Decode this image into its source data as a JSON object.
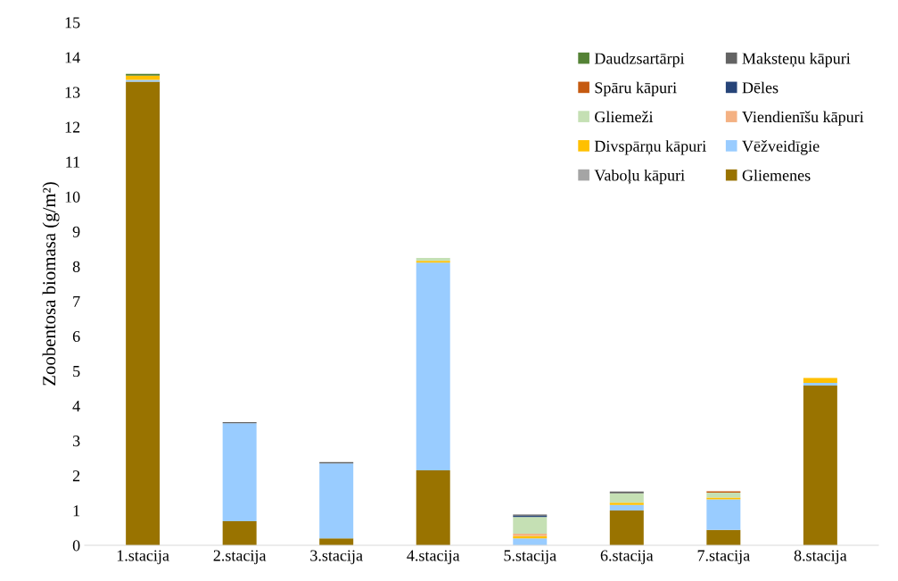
{
  "chart_data": {
    "type": "bar",
    "stacked": true,
    "ylabel": "Zoobentosa biomasa (g/m²)",
    "categories": [
      "1.stacija",
      "2.stacija",
      "3.stacija",
      "4.stacija",
      "5.stacija",
      "6.stacija",
      "7.stacija",
      "8.stacija"
    ],
    "ylim": [
      0,
      15
    ],
    "yticks": [
      0,
      1,
      2,
      3,
      4,
      5,
      6,
      7,
      8,
      9,
      10,
      11,
      12,
      13,
      14,
      15
    ],
    "grid": false,
    "legend": "top right",
    "series": [
      {
        "name": "Gliemenes",
        "color": "#997300",
        "values": [
          13.3,
          0.69,
          0.2,
          2.15,
          0,
          1.0,
          0.44,
          4.58
        ]
      },
      {
        "name": "Vaboļu kāpuri",
        "color": "#a5a5a5",
        "values": [
          0,
          0,
          0,
          0,
          0,
          0,
          0,
          0
        ]
      },
      {
        "name": "Vēžveidīgie",
        "color": "#99ccff",
        "values": [
          0.05,
          2.81,
          2.15,
          5.96,
          0.2,
          0.16,
          0.88,
          0.08
        ]
      },
      {
        "name": "Divspārņu kāpuri",
        "color": "#ffc000",
        "values": [
          0.12,
          0,
          0,
          0.05,
          0.07,
          0.06,
          0.05,
          0.14
        ]
      },
      {
        "name": "Viendienīšu kāpuri",
        "color": "#f4b183",
        "values": [
          0,
          0,
          0,
          0,
          0.06,
          null,
          0,
          0
        ]
      },
      {
        "name": "Gliemeži",
        "color": "#c5e0b4",
        "values": [
          0,
          0,
          0,
          0.08,
          0.48,
          0.27,
          0.14,
          0
        ]
      },
      {
        "name": "Dēles",
        "color": "#264478",
        "values": [
          0,
          0,
          0,
          0,
          0.04,
          0,
          0,
          0
        ]
      },
      {
        "name": "Spāru kāpuri",
        "color": "#c55a11",
        "values": [
          0,
          0,
          0,
          0,
          0,
          null,
          0.04,
          0
        ]
      },
      {
        "name": "Maksteņu kāpuri",
        "color": "#636363",
        "values": [
          0,
          0.03,
          0.04,
          0,
          0.03,
          0.05,
          0,
          0
        ]
      },
      {
        "name": "Daudzsartārpi",
        "color": "#548235",
        "values": [
          0.05,
          0,
          0,
          0,
          0,
          0,
          0,
          0
        ]
      }
    ]
  }
}
